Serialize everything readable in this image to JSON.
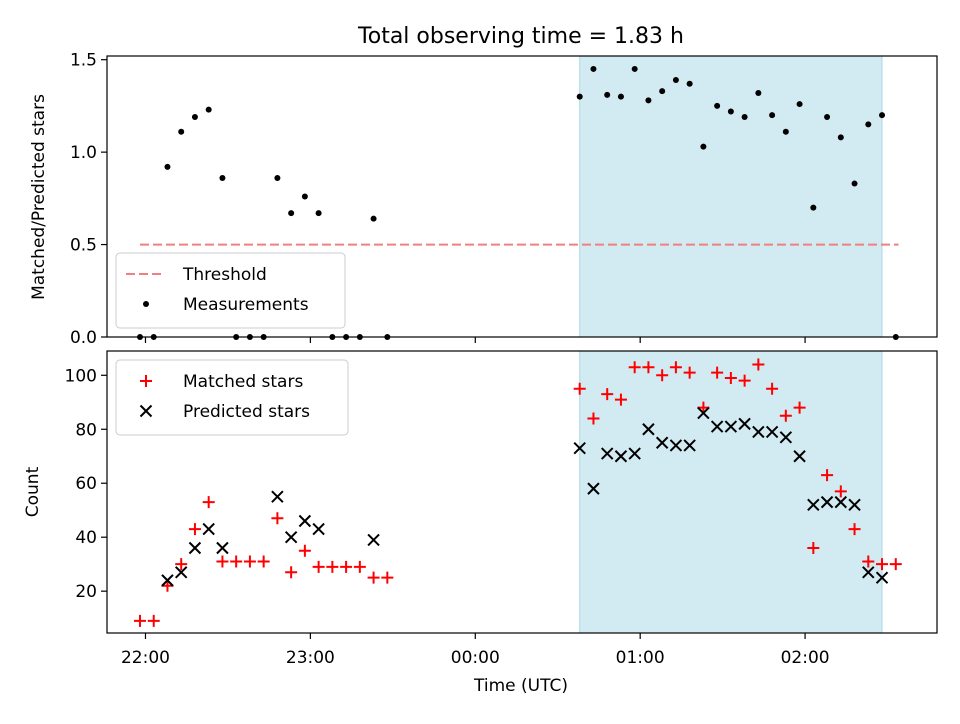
{
  "figure": {
    "title": "Total observing time = 1.83 h",
    "xlabel": "Time (UTC)",
    "x_ticks": [
      "22:00",
      "23:00",
      "00:00",
      "01:00",
      "02:00"
    ],
    "highlight_color": "#add8e6"
  },
  "chart_data": [
    {
      "type": "scatter",
      "ylabel": "Matched/Predicted stars",
      "xlim": [
        "21:46",
        "02:48"
      ],
      "ylim": [
        0,
        1.52
      ],
      "y_ticks": [
        "0.0",
        "0.5",
        "1.0",
        "1.5"
      ],
      "x_ticks": [
        "22:00",
        "23:00",
        "00:00",
        "01:00",
        "02:00"
      ],
      "grid": false,
      "legend": "lower-left",
      "highlight_span": [
        "00:38",
        "02:28"
      ],
      "threshold": {
        "name": "Threshold",
        "value": 0.5,
        "x_range": [
          "21:58",
          "02:34"
        ],
        "color": "#f08080",
        "style": "dashed"
      },
      "series": [
        {
          "name": "Measurements",
          "color": "#000000",
          "marker": "dot",
          "points": [
            [
              "21:58",
              0
            ],
            [
              "22:03",
              0
            ],
            [
              "22:08",
              0.92
            ],
            [
              "22:13",
              1.11
            ],
            [
              "22:18",
              1.19
            ],
            [
              "22:23",
              1.23
            ],
            [
              "22:28",
              0.86
            ],
            [
              "22:33",
              0
            ],
            [
              "22:38",
              0
            ],
            [
              "22:43",
              0
            ],
            [
              "22:48",
              0.86
            ],
            [
              "22:53",
              0.67
            ],
            [
              "22:58",
              0.76
            ],
            [
              "23:03",
              0.67
            ],
            [
              "23:08",
              0
            ],
            [
              "23:13",
              0
            ],
            [
              "23:18",
              0
            ],
            [
              "23:23",
              0.64
            ],
            [
              "23:28",
              0
            ],
            [
              "00:38",
              1.3
            ],
            [
              "00:43",
              1.45
            ],
            [
              "00:48",
              1.31
            ],
            [
              "00:53",
              1.3
            ],
            [
              "00:58",
              1.45
            ],
            [
              "01:03",
              1.28
            ],
            [
              "01:08",
              1.33
            ],
            [
              "01:13",
              1.39
            ],
            [
              "01:18",
              1.37
            ],
            [
              "01:23",
              1.03
            ],
            [
              "01:28",
              1.25
            ],
            [
              "01:33",
              1.22
            ],
            [
              "01:38",
              1.19
            ],
            [
              "01:43",
              1.32
            ],
            [
              "01:48",
              1.2
            ],
            [
              "01:53",
              1.11
            ],
            [
              "01:58",
              1.26
            ],
            [
              "02:03",
              0.7
            ],
            [
              "02:08",
              1.19
            ],
            [
              "02:13",
              1.08
            ],
            [
              "02:18",
              0.83
            ],
            [
              "02:23",
              1.15
            ],
            [
              "02:28",
              1.2
            ],
            [
              "02:33",
              0
            ]
          ]
        }
      ]
    },
    {
      "type": "scatter",
      "ylabel": "Count",
      "xlim": [
        "21:46",
        "02:48"
      ],
      "ylim": [
        4.5,
        109
      ],
      "y_ticks": [
        "20",
        "40",
        "60",
        "80",
        "100"
      ],
      "x_ticks": [
        "22:00",
        "23:00",
        "00:00",
        "01:00",
        "02:00"
      ],
      "grid": false,
      "legend": "upper-left",
      "highlight_span": [
        "00:38",
        "02:28"
      ],
      "series": [
        {
          "name": "Matched stars",
          "color": "#ff0000",
          "marker": "plus",
          "points": [
            [
              "21:58",
              9
            ],
            [
              "22:03",
              9
            ],
            [
              "22:08",
              22
            ],
            [
              "22:13",
              30
            ],
            [
              "22:18",
              43
            ],
            [
              "22:23",
              53
            ],
            [
              "22:28",
              31
            ],
            [
              "22:33",
              31
            ],
            [
              "22:38",
              31
            ],
            [
              "22:43",
              31
            ],
            [
              "22:48",
              47
            ],
            [
              "22:53",
              27
            ],
            [
              "22:58",
              35
            ],
            [
              "23:03",
              29
            ],
            [
              "23:08",
              29
            ],
            [
              "23:13",
              29
            ],
            [
              "23:18",
              29
            ],
            [
              "23:23",
              25
            ],
            [
              "23:28",
              25
            ],
            [
              "00:38",
              95
            ],
            [
              "00:43",
              84
            ],
            [
              "00:48",
              93
            ],
            [
              "00:53",
              91
            ],
            [
              "00:58",
              103
            ],
            [
              "01:03",
              103
            ],
            [
              "01:08",
              100
            ],
            [
              "01:13",
              103
            ],
            [
              "01:18",
              101
            ],
            [
              "01:23",
              88
            ],
            [
              "01:28",
              101
            ],
            [
              "01:33",
              99
            ],
            [
              "01:38",
              98
            ],
            [
              "01:43",
              104
            ],
            [
              "01:48",
              95
            ],
            [
              "01:53",
              85
            ],
            [
              "01:58",
              88
            ],
            [
              "02:03",
              36
            ],
            [
              "02:08",
              63
            ],
            [
              "02:13",
              57
            ],
            [
              "02:18",
              43
            ],
            [
              "02:23",
              31
            ],
            [
              "02:28",
              30
            ],
            [
              "02:33",
              30
            ]
          ]
        },
        {
          "name": "Predicted stars",
          "color": "#000000",
          "marker": "x",
          "points": [
            [
              "22:08",
              24
            ],
            [
              "22:13",
              27
            ],
            [
              "22:18",
              36
            ],
            [
              "22:23",
              43
            ],
            [
              "22:28",
              36
            ],
            [
              "22:48",
              55
            ],
            [
              "22:53",
              40
            ],
            [
              "22:58",
              46
            ],
            [
              "23:03",
              43
            ],
            [
              "23:23",
              39
            ],
            [
              "00:38",
              73
            ],
            [
              "00:43",
              58
            ],
            [
              "00:48",
              71
            ],
            [
              "00:53",
              70
            ],
            [
              "00:58",
              71
            ],
            [
              "01:03",
              80
            ],
            [
              "01:08",
              75
            ],
            [
              "01:13",
              74
            ],
            [
              "01:18",
              74
            ],
            [
              "01:23",
              86
            ],
            [
              "01:28",
              81
            ],
            [
              "01:33",
              81
            ],
            [
              "01:38",
              82
            ],
            [
              "01:43",
              79
            ],
            [
              "01:48",
              79
            ],
            [
              "01:53",
              77
            ],
            [
              "01:58",
              70
            ],
            [
              "02:03",
              52
            ],
            [
              "02:08",
              53
            ],
            [
              "02:13",
              53
            ],
            [
              "02:18",
              52
            ],
            [
              "02:23",
              27
            ],
            [
              "02:28",
              25
            ]
          ]
        }
      ]
    }
  ]
}
